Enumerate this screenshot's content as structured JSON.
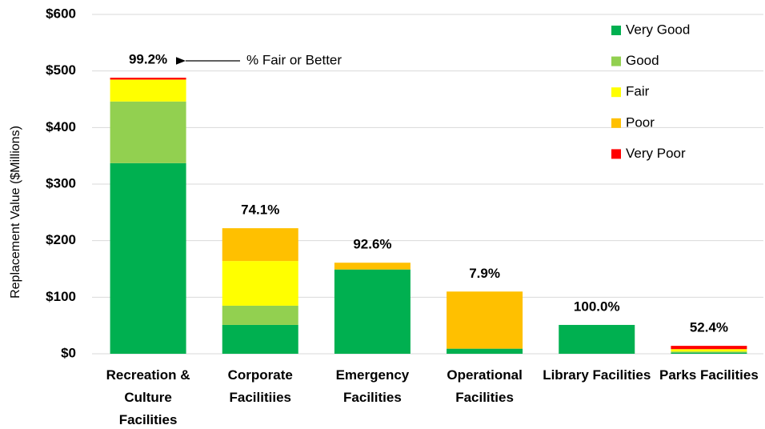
{
  "chart_data": {
    "type": "stacked_bar",
    "y_label": "Replacement Value ($Millions)",
    "categories": [
      "Recreation &\nCulture\nFacilities",
      "Corporate\nFacilitiies",
      "Emergency\nFacilities",
      "Operational\nFacilities",
      "Library Facilities",
      "Parks Facilities"
    ],
    "series": [
      {
        "name": "Very Good",
        "color": "#00b050",
        "values": [
          337,
          51,
          149,
          9,
          51,
          2
        ]
      },
      {
        "name": "Good",
        "color": "#92d050",
        "values": [
          109,
          34,
          0,
          0,
          0,
          2
        ]
      },
      {
        "name": "Fair",
        "color": "#ffff00",
        "values": [
          38,
          79,
          0,
          0,
          0,
          3.3
        ]
      },
      {
        "name": "Poor",
        "color": "#ffc000",
        "values": [
          1,
          58,
          12,
          101,
          0,
          1.2
        ]
      },
      {
        "name": "Very Poor",
        "color": "#ff0000",
        "values": [
          3,
          0,
          0,
          0,
          0,
          5.5
        ]
      }
    ],
    "bar_labels": [
      "99.2%",
      "74.1%",
      "92.6%",
      "7.9%",
      "100.0%",
      "52.4%"
    ],
    "annotation": "% Fair or Better",
    "ylim": [
      0,
      600
    ],
    "yticks": [
      {
        "value": 0,
        "label": "$0"
      },
      {
        "value": 100,
        "label": "$100"
      },
      {
        "value": 200,
        "label": "$200"
      },
      {
        "value": 300,
        "label": "$300"
      },
      {
        "value": 400,
        "label": "$400"
      },
      {
        "value": 500,
        "label": "$500"
      },
      {
        "value": 600,
        "label": "$600"
      }
    ],
    "grid": true,
    "legend": "top-right"
  }
}
